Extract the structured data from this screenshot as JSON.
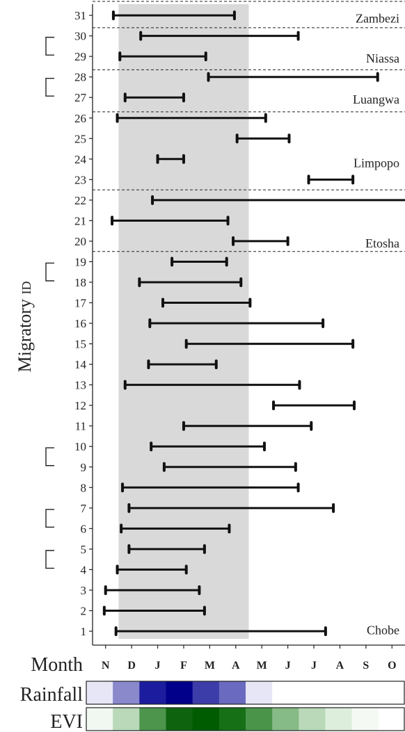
{
  "chart_data": {
    "type": "range-bar",
    "ylabel_main": "Migratory",
    "ylabel_sub": "ID",
    "xlabel": "Month",
    "months": [
      "N",
      "D",
      "J",
      "F",
      "M",
      "A",
      "M",
      "J",
      "J",
      "A",
      "S",
      "O"
    ],
    "xlim": [
      0,
      12
    ],
    "ylim": [
      0.5,
      31.7
    ],
    "shade_range": [
      1,
      6
    ],
    "regions": [
      {
        "name": "Zambezi",
        "label_y": 30.85,
        "sep_y": 31.5
      },
      {
        "name": "Niassa",
        "label_y": 28.9,
        "sep_y": 30.4
      },
      {
        "name": "Luangwa",
        "label_y": 26.9,
        "sep_y": 28.35
      },
      {
        "name": "Limpopo",
        "label_y": 23.8,
        "sep_y": 26.3
      },
      {
        "name": "Etosha",
        "label_y": 19.9,
        "sep_y": 22.5
      },
      {
        "name": "Chobe",
        "label_y": 1.05,
        "sep_y": 19.5
      }
    ],
    "intervals": [
      {
        "id": 31,
        "start": 0.8,
        "end": 5.45
      },
      {
        "id": 30,
        "start": 1.85,
        "end": 7.9
      },
      {
        "id": 29,
        "start": 1.05,
        "end": 4.35
      },
      {
        "id": 28,
        "start": 4.45,
        "end": 10.95
      },
      {
        "id": 27,
        "start": 1.25,
        "end": 3.5
      },
      {
        "id": 26,
        "start": 0.95,
        "end": 6.65
      },
      {
        "id": 25,
        "start": 5.55,
        "end": 7.55
      },
      {
        "id": 24,
        "start": 2.5,
        "end": 3.5
      },
      {
        "id": 23,
        "start": 8.3,
        "end": 10.0
      },
      {
        "id": 22,
        "start": 2.3,
        "end": 12.0
      },
      {
        "id": 21,
        "start": 0.75,
        "end": 5.2
      },
      {
        "id": 20,
        "start": 5.4,
        "end": 7.5
      },
      {
        "id": 19,
        "start": 3.05,
        "end": 5.15
      },
      {
        "id": 18,
        "start": 1.8,
        "end": 5.7
      },
      {
        "id": 17,
        "start": 2.7,
        "end": 6.05
      },
      {
        "id": 16,
        "start": 2.2,
        "end": 8.85
      },
      {
        "id": 15,
        "start": 3.6,
        "end": 10.0
      },
      {
        "id": 14,
        "start": 2.15,
        "end": 4.75
      },
      {
        "id": 13,
        "start": 1.25,
        "end": 7.95
      },
      {
        "id": 12,
        "start": 6.95,
        "end": 10.05
      },
      {
        "id": 11,
        "start": 3.5,
        "end": 8.4
      },
      {
        "id": 10,
        "start": 2.25,
        "end": 6.6
      },
      {
        "id": 9,
        "start": 2.75,
        "end": 7.8
      },
      {
        "id": 8,
        "start": 1.15,
        "end": 7.9
      },
      {
        "id": 7,
        "start": 1.4,
        "end": 9.25
      },
      {
        "id": 6,
        "start": 1.1,
        "end": 5.25
      },
      {
        "id": 5,
        "start": 1.4,
        "end": 4.3
      },
      {
        "id": 4,
        "start": 0.95,
        "end": 3.6
      },
      {
        "id": 3,
        "start": 0.5,
        "end": 4.1
      },
      {
        "id": 2,
        "start": 0.45,
        "end": 4.3
      },
      {
        "id": 1,
        "start": 0.9,
        "end": 8.95
      }
    ],
    "brackets": [
      [
        29,
        30
      ],
      [
        27,
        28
      ],
      [
        18,
        19
      ],
      [
        9,
        10
      ],
      [
        6,
        7
      ],
      [
        4,
        5
      ]
    ],
    "rainfall": {
      "title": "Rainfall",
      "colors": [
        "#e6e6f6",
        "#8989cc",
        "#1c1c9e",
        "#00008b",
        "#3d3daa",
        "#6a6ac0",
        "#e6e6f6",
        "#ffffff",
        "#ffffff",
        "#ffffff",
        "#ffffff",
        "#ffffff"
      ]
    },
    "evi": {
      "title": "EVI",
      "colors": [
        "#f1f7f1",
        "#b9d9b9",
        "#4d944d",
        "#0e640e",
        "#005c00",
        "#167016",
        "#4a944a",
        "#86ba86",
        "#b9d9b9",
        "#ddeedd",
        "#f4f9f4",
        "#ffffff"
      ]
    }
  }
}
